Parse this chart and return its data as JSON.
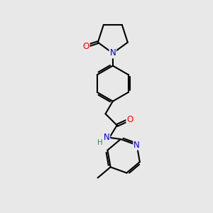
{
  "background_color": "#e8e8e8",
  "bond_color": "#000000",
  "bond_width": 1.5,
  "atom_colors": {
    "N": "#0000cd",
    "O": "#ff0000",
    "H": "#2e8b57",
    "C": "#000000"
  },
  "font_size": 8.5
}
